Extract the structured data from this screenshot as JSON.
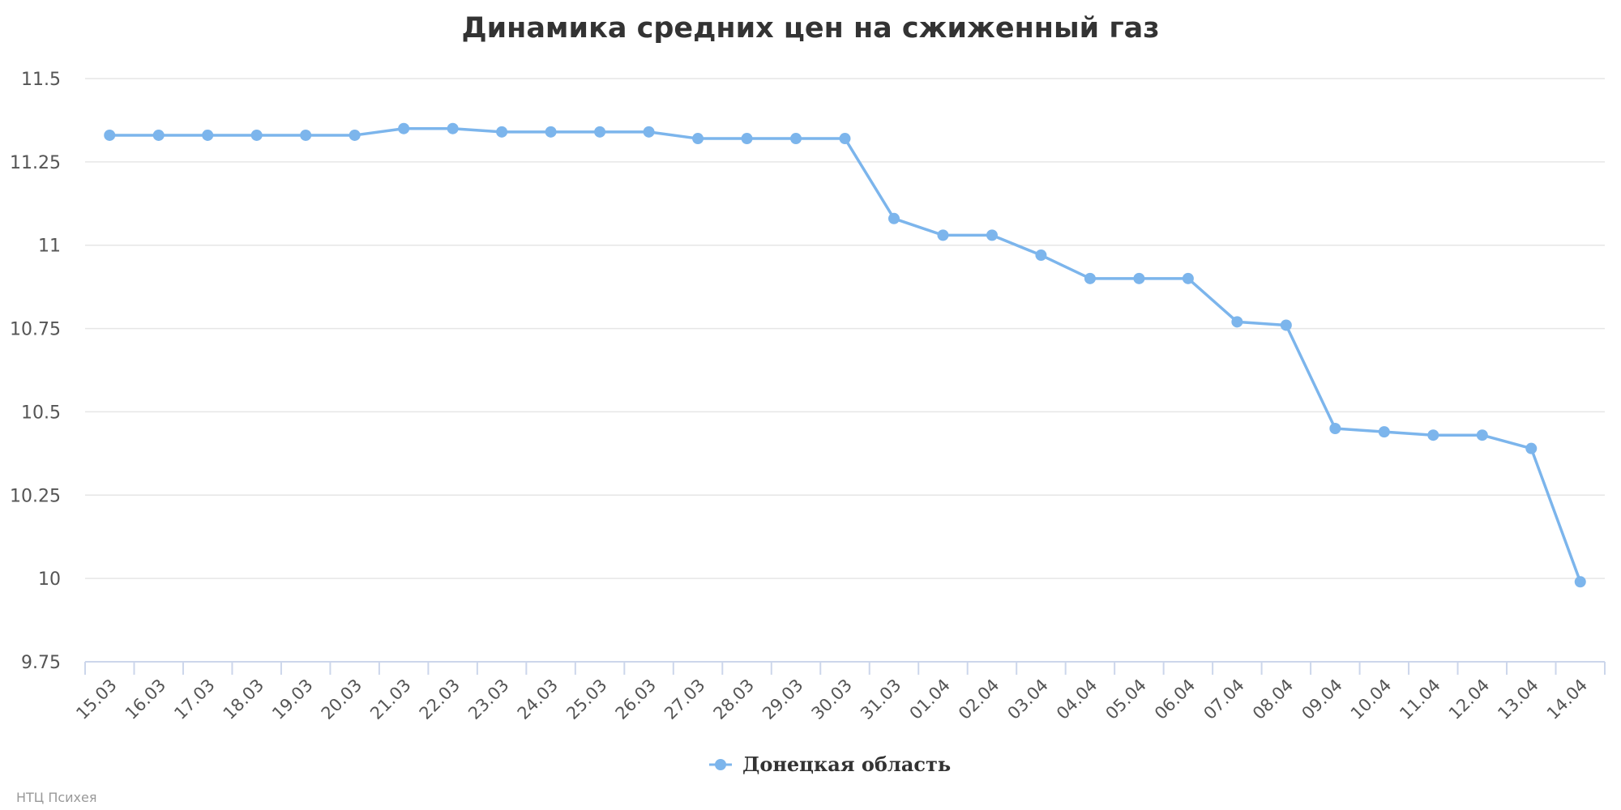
{
  "chart_data": {
    "type": "line",
    "title": "Динамика средних цен на сжиженный газ",
    "xlabel": "",
    "ylabel": "",
    "categories": [
      "15.03",
      "16.03",
      "17.03",
      "18.03",
      "19.03",
      "20.03",
      "21.03",
      "22.03",
      "23.03",
      "24.03",
      "25.03",
      "26.03",
      "27.03",
      "28.03",
      "29.03",
      "30.03",
      "31.03",
      "01.04",
      "02.04",
      "03.04",
      "04.04",
      "05.04",
      "06.04",
      "07.04",
      "08.04",
      "09.04",
      "10.04",
      "11.04",
      "12.04",
      "13.04",
      "14.04"
    ],
    "series": [
      {
        "name": "Донецкая область",
        "color": "#7cb5ec",
        "values": [
          11.33,
          11.33,
          11.33,
          11.33,
          11.33,
          11.33,
          11.35,
          11.35,
          11.34,
          11.34,
          11.34,
          11.34,
          11.32,
          11.32,
          11.32,
          11.32,
          11.08,
          11.03,
          11.03,
          10.97,
          10.9,
          10.9,
          10.9,
          10.77,
          10.76,
          10.45,
          10.44,
          10.43,
          10.43,
          10.39,
          9.99
        ]
      }
    ],
    "ylim": [
      9.75,
      11.5
    ],
    "yticks": [
      9.75,
      10,
      10.25,
      10.5,
      10.75,
      11,
      11.25,
      11.5
    ],
    "ytick_labels": [
      "9.75",
      "10",
      "10.25",
      "10.5",
      "10.75",
      "11",
      "11.25",
      "11.5"
    ],
    "grid": true,
    "legend_position": "bottom-center",
    "gridline_color": "#e6e6e6",
    "axis_color": "#ccd6eb"
  },
  "credits": "НТЦ Психея"
}
